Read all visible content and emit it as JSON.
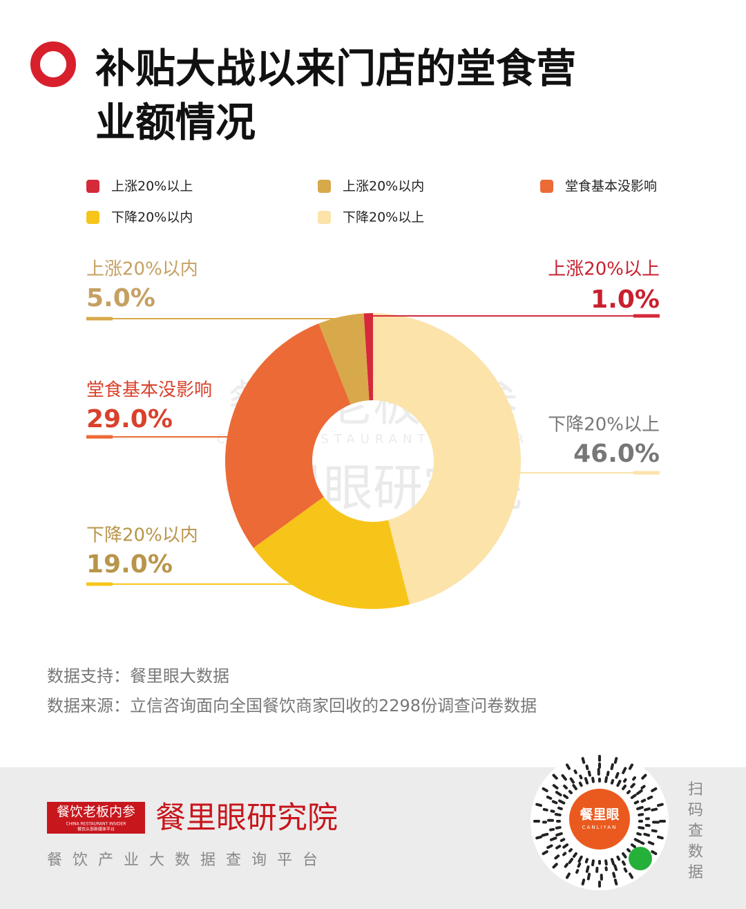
{
  "chart_data": {
    "type": "pie",
    "title": "补贴大战以来门店的堂食营业额情况",
    "categories": [
      "上涨20%以上",
      "上涨20%以内",
      "堂食基本没影响",
      "下降20%以内",
      "下降20%以上"
    ],
    "values": [
      1.0,
      5.0,
      29.0,
      19.0,
      46.0
    ],
    "value_labels": [
      "1.0%",
      "5.0%",
      "29.0%",
      "19.0%",
      "46.0%"
    ],
    "colors": [
      "#d42a3a",
      "#d8a94a",
      "#ec6a36",
      "#f7c51a",
      "#fbe3aa"
    ],
    "direction": "counterclockwise",
    "legend": "top"
  },
  "watermark": {
    "brand": "餐饮老板内参",
    "english": "CHINA RESTAURANT INSIDER",
    "institute": "餐里眼研究院"
  },
  "notes": [
    "数据支持：餐里眼大数据",
    "数据来源：立信咨询面向全国餐饮商家回收的2298份调查问卷数据"
  ],
  "footer": {
    "brand": "餐饮老板内参",
    "brand_english": "CHINA RESTAURANT INSIDER",
    "brand_slogan": "餐饮头部新媒体平台",
    "institute": "餐里眼研究院",
    "tagline": "餐饮产业大数据查询平台",
    "qr_name": "餐里眼",
    "qr_english": "CANLIYAN",
    "scan": "扫码查数据"
  }
}
